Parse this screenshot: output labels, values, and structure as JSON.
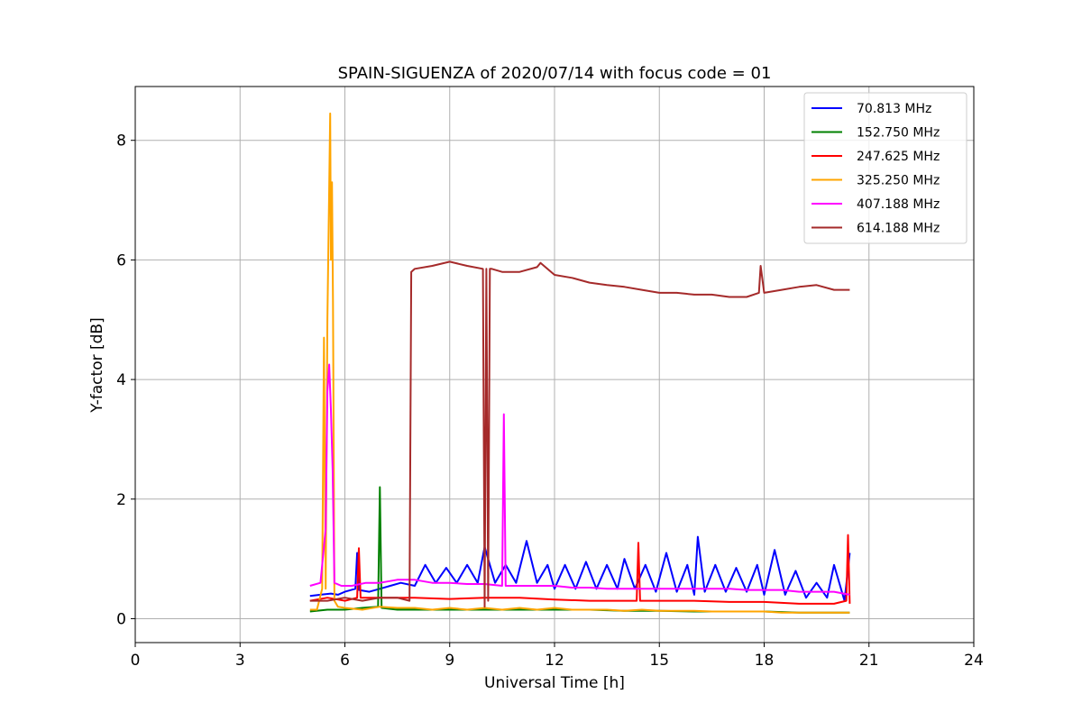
{
  "chart_data": {
    "type": "line",
    "title": "SPAIN-SIGUENZA of 2020/07/14 with focus code = 01",
    "xlabel": "Universal Time [h]",
    "ylabel": "Y-factor [dB]",
    "xlim": [
      0,
      24
    ],
    "ylim": [
      -0.4,
      8.9
    ],
    "xticks": [
      0,
      3,
      6,
      9,
      12,
      15,
      18,
      21,
      24
    ],
    "yticks": [
      0,
      2,
      4,
      6,
      8
    ],
    "grid": true,
    "legend_position": "top-right",
    "series": [
      {
        "name": " 70.813 MHz",
        "color": "#0000ff",
        "x": [
          5.0,
          5.3,
          5.6,
          5.8,
          6.0,
          6.3,
          6.35,
          6.4,
          6.7,
          7.0,
          7.3,
          7.6,
          8.0,
          8.3,
          8.6,
          8.9,
          9.2,
          9.5,
          9.8,
          10.0,
          10.3,
          10.6,
          10.9,
          11.2,
          11.5,
          11.8,
          12.0,
          12.3,
          12.6,
          12.9,
          13.2,
          13.5,
          13.8,
          14.0,
          14.3,
          14.6,
          14.9,
          15.2,
          15.5,
          15.8,
          16.0,
          16.1,
          16.3,
          16.6,
          16.9,
          17.2,
          17.5,
          17.8,
          18.0,
          18.3,
          18.6,
          18.9,
          19.2,
          19.5,
          19.8,
          20.0,
          20.3,
          20.45
        ],
        "y": [
          0.38,
          0.4,
          0.42,
          0.4,
          0.45,
          0.5,
          1.1,
          0.48,
          0.45,
          0.5,
          0.55,
          0.6,
          0.55,
          0.9,
          0.6,
          0.85,
          0.6,
          0.9,
          0.6,
          1.2,
          0.6,
          0.9,
          0.6,
          1.3,
          0.6,
          0.9,
          0.5,
          0.9,
          0.5,
          0.95,
          0.5,
          0.9,
          0.5,
          1.0,
          0.5,
          0.9,
          0.45,
          1.1,
          0.45,
          0.9,
          0.4,
          1.37,
          0.45,
          0.9,
          0.45,
          0.85,
          0.45,
          0.9,
          0.4,
          1.15,
          0.4,
          0.8,
          0.35,
          0.6,
          0.35,
          0.9,
          0.3,
          1.1
        ]
      },
      {
        "name": "152.750 MHz",
        "color": "#008000",
        "x": [
          5.0,
          5.5,
          6.0,
          6.5,
          6.95,
          7.0,
          7.05,
          7.5,
          8.0,
          9.0,
          10.0,
          11.0,
          12.0,
          13.0,
          14.0,
          15.0,
          16.0,
          17.0,
          18.0,
          19.0,
          20.0,
          20.45
        ],
        "y": [
          0.12,
          0.15,
          0.15,
          0.18,
          0.2,
          2.2,
          0.18,
          0.15,
          0.15,
          0.15,
          0.15,
          0.15,
          0.15,
          0.15,
          0.13,
          0.13,
          0.12,
          0.12,
          0.12,
          0.1,
          0.1,
          0.1
        ]
      },
      {
        "name": "247.625 MHz",
        "color": "#ff0000",
        "x": [
          5.0,
          5.5,
          6.0,
          6.35,
          6.4,
          6.45,
          7.0,
          8.0,
          9.0,
          10.0,
          11.0,
          12.0,
          13.0,
          14.0,
          14.35,
          14.4,
          14.45,
          15.0,
          16.0,
          17.0,
          18.0,
          19.0,
          20.0,
          20.35,
          20.4,
          20.45
        ],
        "y": [
          0.3,
          0.35,
          0.3,
          0.35,
          1.18,
          0.35,
          0.35,
          0.35,
          0.33,
          0.35,
          0.35,
          0.32,
          0.3,
          0.3,
          0.3,
          1.27,
          0.3,
          0.3,
          0.3,
          0.28,
          0.28,
          0.25,
          0.25,
          0.3,
          1.4,
          0.25
        ]
      },
      {
        "name": "325.250 MHz",
        "color": "#ffa500",
        "x": [
          5.0,
          5.2,
          5.35,
          5.4,
          5.45,
          5.5,
          5.55,
          5.58,
          5.6,
          5.63,
          5.66,
          5.7,
          5.8,
          6.0,
          6.5,
          7.0,
          7.5,
          8.0,
          8.5,
          9.0,
          9.5,
          10.0,
          10.5,
          11.0,
          11.5,
          12.0,
          12.5,
          13.0,
          13.5,
          14.0,
          14.5,
          15.0,
          15.5,
          16.0,
          16.5,
          17.0,
          17.5,
          18.0,
          18.5,
          19.0,
          19.5,
          20.0,
          20.45
        ],
        "y": [
          0.15,
          0.15,
          0.5,
          4.7,
          0.5,
          5.0,
          7.2,
          8.45,
          6.0,
          7.3,
          5.3,
          0.3,
          0.2,
          0.18,
          0.15,
          0.2,
          0.18,
          0.18,
          0.15,
          0.18,
          0.15,
          0.18,
          0.15,
          0.18,
          0.15,
          0.18,
          0.15,
          0.15,
          0.15,
          0.13,
          0.15,
          0.13,
          0.13,
          0.13,
          0.12,
          0.12,
          0.12,
          0.12,
          0.1,
          0.1,
          0.1,
          0.1,
          0.1
        ]
      },
      {
        "name": "407.188 MHz",
        "color": "#ff00ff",
        "x": [
          5.0,
          5.3,
          5.45,
          5.5,
          5.55,
          5.6,
          5.65,
          5.7,
          5.9,
          6.2,
          6.6,
          7.0,
          7.5,
          8.0,
          8.5,
          9.0,
          9.5,
          10.0,
          10.5,
          10.55,
          10.6,
          11.0,
          11.5,
          12.0,
          12.5,
          13.0,
          13.5,
          14.0,
          14.5,
          15.0,
          15.5,
          16.0,
          16.5,
          17.0,
          17.5,
          18.0,
          18.5,
          19.0,
          19.5,
          20.0,
          20.45
        ],
        "y": [
          0.55,
          0.6,
          1.5,
          3.8,
          4.25,
          3.5,
          2.5,
          0.6,
          0.55,
          0.55,
          0.6,
          0.6,
          0.65,
          0.65,
          0.6,
          0.6,
          0.58,
          0.58,
          0.55,
          3.42,
          0.55,
          0.55,
          0.55,
          0.55,
          0.52,
          0.52,
          0.5,
          0.5,
          0.5,
          0.5,
          0.5,
          0.5,
          0.5,
          0.5,
          0.48,
          0.48,
          0.48,
          0.45,
          0.45,
          0.45,
          0.4
        ]
      },
      {
        "name": "614.188 MHz",
        "color": "#a52a2a",
        "x": [
          5.0,
          5.5,
          6.0,
          6.5,
          7.0,
          7.5,
          7.85,
          7.9,
          8.0,
          8.5,
          9.0,
          9.5,
          9.95,
          10.0,
          10.05,
          10.1,
          10.15,
          10.2,
          10.5,
          11.0,
          11.5,
          11.6,
          12.0,
          12.5,
          13.0,
          13.5,
          14.0,
          14.5,
          15.0,
          15.5,
          16.0,
          16.5,
          17.0,
          17.5,
          17.85,
          17.9,
          18.0,
          18.5,
          19.0,
          19.5,
          20.0,
          20.45
        ],
        "y": [
          0.3,
          0.3,
          0.35,
          0.3,
          0.35,
          0.35,
          0.3,
          5.8,
          5.85,
          5.9,
          5.97,
          5.9,
          5.85,
          0.2,
          5.85,
          0.3,
          5.85,
          5.85,
          5.8,
          5.8,
          5.88,
          5.95,
          5.75,
          5.7,
          5.62,
          5.58,
          5.55,
          5.5,
          5.45,
          5.45,
          5.42,
          5.42,
          5.38,
          5.38,
          5.45,
          5.9,
          5.45,
          5.5,
          5.55,
          5.58,
          5.5,
          5.5
        ]
      }
    ]
  }
}
